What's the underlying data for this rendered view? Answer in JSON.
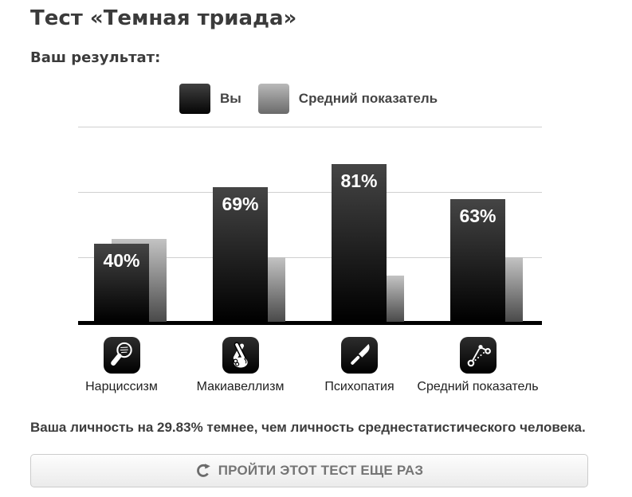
{
  "title": "Тест «Темная триада»",
  "subtitle": "Ваш результат:",
  "legend": {
    "you": "Вы",
    "average": "Средний показатель"
  },
  "chart_data": {
    "type": "bar",
    "categories": [
      "Нарциссизм",
      "Макиавеллизм",
      "Психопатия",
      "Средний показатель"
    ],
    "series": [
      {
        "name": "Вы",
        "values": [
          40,
          69,
          81,
          63
        ],
        "labels": [
          "40%",
          "69%",
          "81%",
          "63%"
        ]
      },
      {
        "name": "Средний показатель",
        "values": [
          42.5,
          33,
          23.5,
          33
        ]
      }
    ],
    "ylim": [
      0,
      100
    ],
    "gridlines_pct": [
      33.3,
      66.7,
      100
    ],
    "grid": true,
    "legend_position": "top",
    "bar_color_you": "#1a1a1a",
    "bar_color_average": "#8a8a8a",
    "icons": [
      "mirror-icon",
      "crossed-fingers-icon",
      "knife-icon",
      "connected-dots-icon"
    ]
  },
  "result_text": "Ваша личность на 29.83% темнее, чем личность среднестатистического человека.",
  "retry_button": {
    "label": "ПРОЙТИ ЭТОТ ТЕСТ ЕЩЕ РАЗ",
    "icon": "refresh-icon"
  }
}
